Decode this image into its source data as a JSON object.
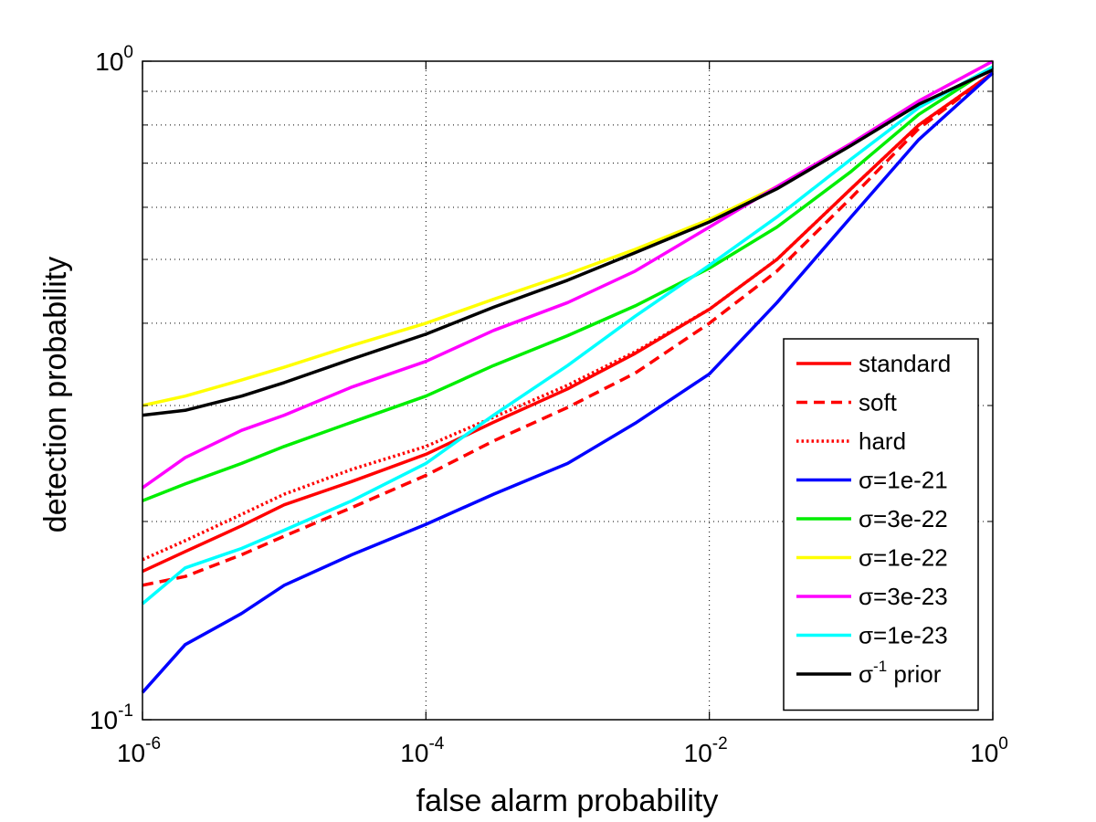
{
  "chart_data": {
    "type": "line",
    "title": "",
    "xlabel": "false alarm probability",
    "ylabel": "detection probability",
    "xscale": "log",
    "yscale": "log",
    "xlim": [
      1e-06,
      1
    ],
    "ylim": [
      0.1,
      1
    ],
    "grid": true,
    "legend_position": "bottom-right",
    "x_ticks": [
      {
        "base": "10",
        "exp": "-6",
        "value": 1e-06
      },
      {
        "base": "10",
        "exp": "-4",
        "value": 0.0001
      },
      {
        "base": "10",
        "exp": "-2",
        "value": 0.01
      },
      {
        "base": "10",
        "exp": "0",
        "value": 1
      }
    ],
    "y_ticks": [
      {
        "base": "10",
        "exp": "-1",
        "value": 0.1
      },
      {
        "base": "10",
        "exp": "0",
        "value": 1
      }
    ],
    "series": [
      {
        "name": "standard",
        "color": "#ff0000",
        "style": "solid",
        "x": [
          1e-06,
          2e-06,
          5e-06,
          1e-05,
          3e-05,
          0.0001,
          0.0003,
          0.001,
          0.003,
          0.01,
          0.03,
          0.1,
          0.3,
          1
        ],
        "y": [
          0.168,
          0.18,
          0.197,
          0.212,
          0.23,
          0.253,
          0.283,
          0.318,
          0.36,
          0.42,
          0.5,
          0.64,
          0.8,
          0.96
        ]
      },
      {
        "name": "soft",
        "color": "#ff0000",
        "style": "dashed",
        "x": [
          1e-06,
          2e-06,
          5e-06,
          1e-05,
          3e-05,
          0.0001,
          0.0003,
          0.001,
          0.003,
          0.01,
          0.03,
          0.1,
          0.3,
          1
        ],
        "y": [
          0.16,
          0.165,
          0.178,
          0.19,
          0.21,
          0.235,
          0.265,
          0.298,
          0.336,
          0.4,
          0.48,
          0.62,
          0.79,
          0.96
        ]
      },
      {
        "name": "hard",
        "color": "#ff0000",
        "style": "dotted",
        "x": [
          1e-06,
          2e-06,
          5e-06,
          1e-05,
          3e-05,
          0.0001,
          0.0003,
          0.001,
          0.003,
          0.01,
          0.03,
          0.1,
          0.3,
          1
        ],
        "y": [
          0.175,
          0.187,
          0.205,
          0.22,
          0.24,
          0.26,
          0.288,
          0.322,
          0.362,
          0.42,
          0.5,
          0.64,
          0.8,
          0.96
        ]
      },
      {
        "name": "σ=1e-21",
        "color": "#0000ff",
        "style": "solid",
        "x": [
          1e-06,
          2e-06,
          5e-06,
          1e-05,
          3e-05,
          0.0001,
          0.0003,
          0.001,
          0.003,
          0.01,
          0.03,
          0.1,
          0.3,
          1
        ],
        "y": [
          0.11,
          0.13,
          0.145,
          0.16,
          0.178,
          0.198,
          0.22,
          0.245,
          0.282,
          0.335,
          0.43,
          0.58,
          0.76,
          0.96
        ]
      },
      {
        "name": "σ=3e-22",
        "color": "#00ee00",
        "style": "solid",
        "x": [
          1e-06,
          2e-06,
          5e-06,
          1e-05,
          3e-05,
          0.0001,
          0.0003,
          0.001,
          0.003,
          0.01,
          0.03,
          0.1,
          0.3,
          1
        ],
        "y": [
          0.215,
          0.228,
          0.245,
          0.26,
          0.283,
          0.31,
          0.345,
          0.383,
          0.425,
          0.485,
          0.56,
          0.68,
          0.83,
          0.98
        ]
      },
      {
        "name": "σ=1e-22",
        "color": "#ffff00",
        "style": "solid",
        "x": [
          1e-06,
          2e-06,
          5e-06,
          1e-05,
          3e-05,
          0.0001,
          0.0003,
          0.001,
          0.003,
          0.01,
          0.03,
          0.1,
          0.3,
          1
        ],
        "y": [
          0.3,
          0.31,
          0.328,
          0.343,
          0.37,
          0.4,
          0.435,
          0.475,
          0.518,
          0.575,
          0.645,
          0.75,
          0.87,
          1.0
        ]
      },
      {
        "name": "σ=3e-23",
        "color": "#ff00ff",
        "style": "solid",
        "x": [
          1e-06,
          2e-06,
          5e-06,
          1e-05,
          3e-05,
          0.0001,
          0.0003,
          0.001,
          0.003,
          0.01,
          0.03,
          0.1,
          0.3,
          1
        ],
        "y": [
          0.225,
          0.25,
          0.275,
          0.29,
          0.32,
          0.35,
          0.39,
          0.43,
          0.48,
          0.56,
          0.645,
          0.75,
          0.87,
          1.0
        ]
      },
      {
        "name": "σ=1e-23",
        "color": "#00ffff",
        "style": "solid",
        "x": [
          1e-06,
          2e-06,
          5e-06,
          1e-05,
          3e-05,
          0.0001,
          0.0003,
          0.001,
          0.003,
          0.01,
          0.03,
          0.1,
          0.3,
          1
        ],
        "y": [
          0.15,
          0.17,
          0.182,
          0.194,
          0.215,
          0.245,
          0.29,
          0.345,
          0.41,
          0.49,
          0.58,
          0.71,
          0.85,
          0.98
        ]
      },
      {
        "name": "σ-1 prior",
        "color": "#000000",
        "style": "solid",
        "legend_base": "σ",
        "legend_sup": "-1",
        "legend_rest": " prior",
        "x": [
          1e-06,
          2e-06,
          5e-06,
          1e-05,
          3e-05,
          0.0001,
          0.0003,
          0.001,
          0.003,
          0.01,
          0.03,
          0.1,
          0.3,
          1
        ],
        "y": [
          0.29,
          0.295,
          0.31,
          0.325,
          0.353,
          0.385,
          0.423,
          0.465,
          0.512,
          0.57,
          0.64,
          0.745,
          0.86,
          0.97
        ]
      }
    ]
  }
}
